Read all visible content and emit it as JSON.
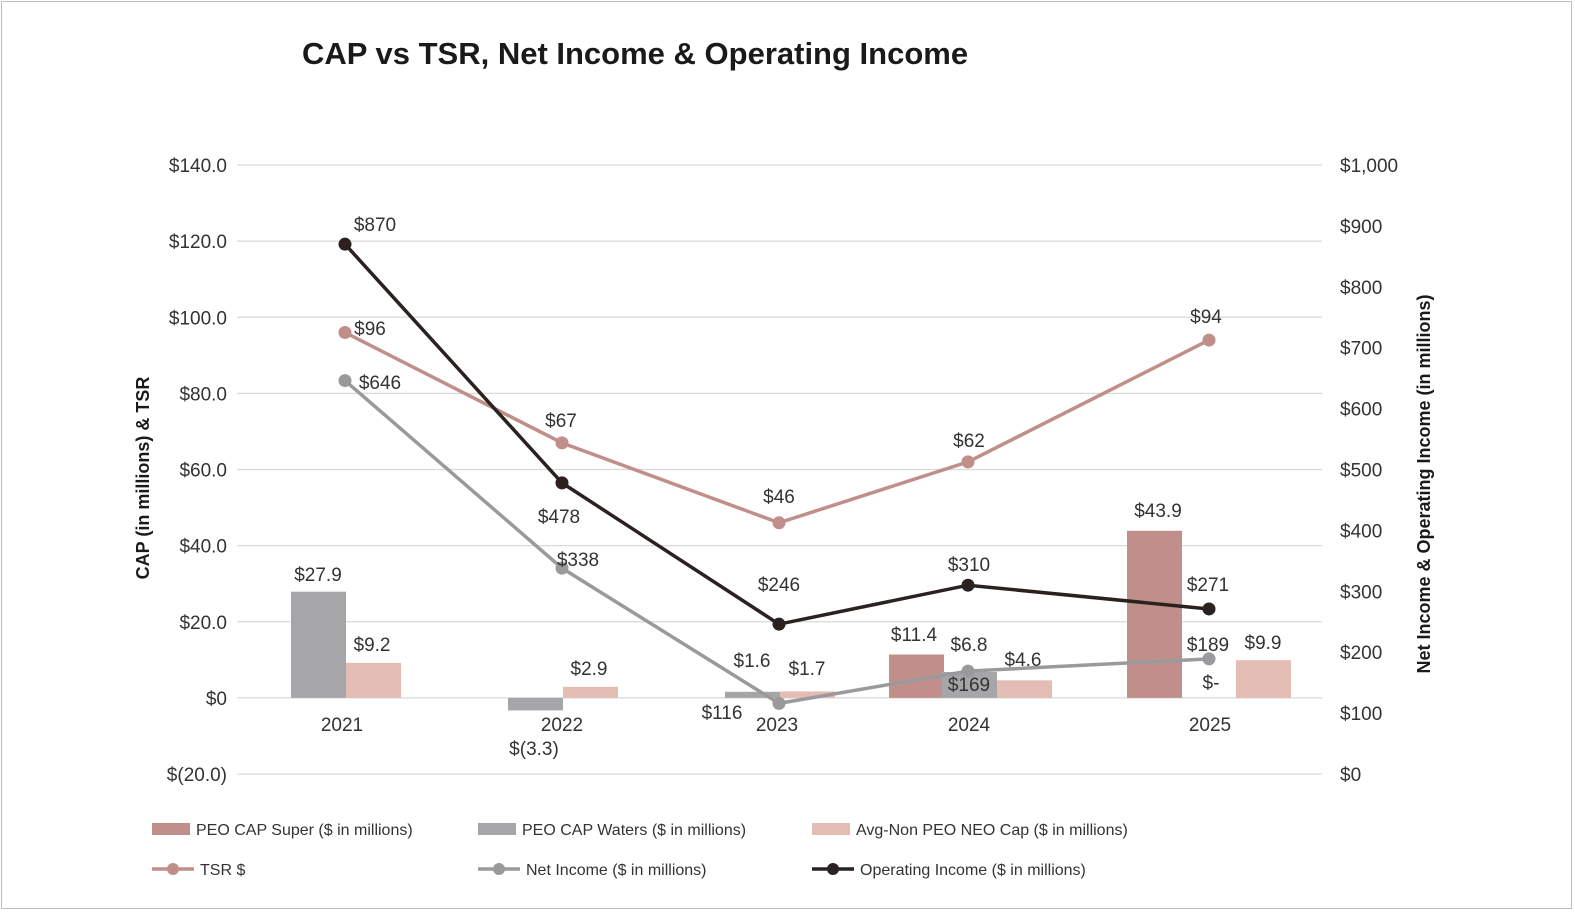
{
  "chart_data": {
    "type": "bar",
    "title": "CAP vs TSR, Net Income & Operating Income",
    "ylabel": "CAP (in millions) & TSR",
    "y2label": "Net Income & Operating Income (in millions)",
    "categories": [
      "2021",
      "2022",
      "2023",
      "2024",
      "2025"
    ],
    "ylim": [
      -20,
      140
    ],
    "y2lim": [
      0,
      1000
    ],
    "y_ticks": [
      140,
      120,
      100,
      80,
      60,
      40,
      20,
      0,
      -20
    ],
    "y_tick_labels": [
      "$140.0",
      "$120.0",
      "$100.0",
      "$80.0",
      "$60.0",
      "$40.0",
      "$20.0",
      "$0",
      "$(20.0)"
    ],
    "y2_ticks": [
      1000,
      900,
      800,
      700,
      600,
      500,
      400,
      300,
      200,
      100,
      0
    ],
    "y2_tick_labels": [
      "$1,000",
      "$900",
      "$800",
      "$700",
      "$600",
      "$500",
      "$400",
      "$300",
      "$200",
      "$100",
      "$0"
    ],
    "grid": true,
    "legend_position": "bottom",
    "bar_series": [
      {
        "name": "PEO CAP Super ($ in millions)",
        "color": "#c08f8a",
        "values": [
          null,
          null,
          null,
          11.4,
          43.9
        ],
        "labels": [
          "",
          "",
          "",
          "$11.4",
          "$43.9"
        ]
      },
      {
        "name": "PEO CAP Waters ($ in millions)",
        "color": "#a6a6a8",
        "values": [
          27.9,
          -3.3,
          1.6,
          6.8,
          0
        ],
        "labels": [
          "$27.9",
          "$(3.3)",
          "$1.6",
          "$6.8",
          "$-"
        ]
      },
      {
        "name": "Avg-Non PEO NEO Cap ($ in millions)",
        "color": "#e3bcb3",
        "values": [
          9.2,
          2.9,
          1.7,
          4.6,
          9.9
        ],
        "labels": [
          "$9.2",
          "$2.9",
          "$1.7",
          "$4.6",
          "$9.9"
        ]
      }
    ],
    "line_series": [
      {
        "name": "TSR $",
        "axis": "left",
        "color": "#c08f8a",
        "values": [
          96,
          67,
          46,
          62,
          94
        ],
        "labels": [
          "$96",
          "$67",
          "$46",
          "$62",
          "$94"
        ]
      },
      {
        "name": "Net Income ($ in millions)",
        "axis": "right",
        "color": "#9a9a9c",
        "values": [
          646,
          338,
          116,
          169,
          189
        ],
        "labels": [
          "$646",
          "$338",
          "$116",
          "$169",
          "$189"
        ]
      },
      {
        "name": "Operating Income ($ in millions)",
        "axis": "right",
        "color": "#2b2220",
        "values": [
          870,
          478,
          246,
          310,
          271
        ],
        "labels": [
          "$870",
          "$478",
          "$246",
          "$310",
          "$271"
        ]
      }
    ]
  }
}
